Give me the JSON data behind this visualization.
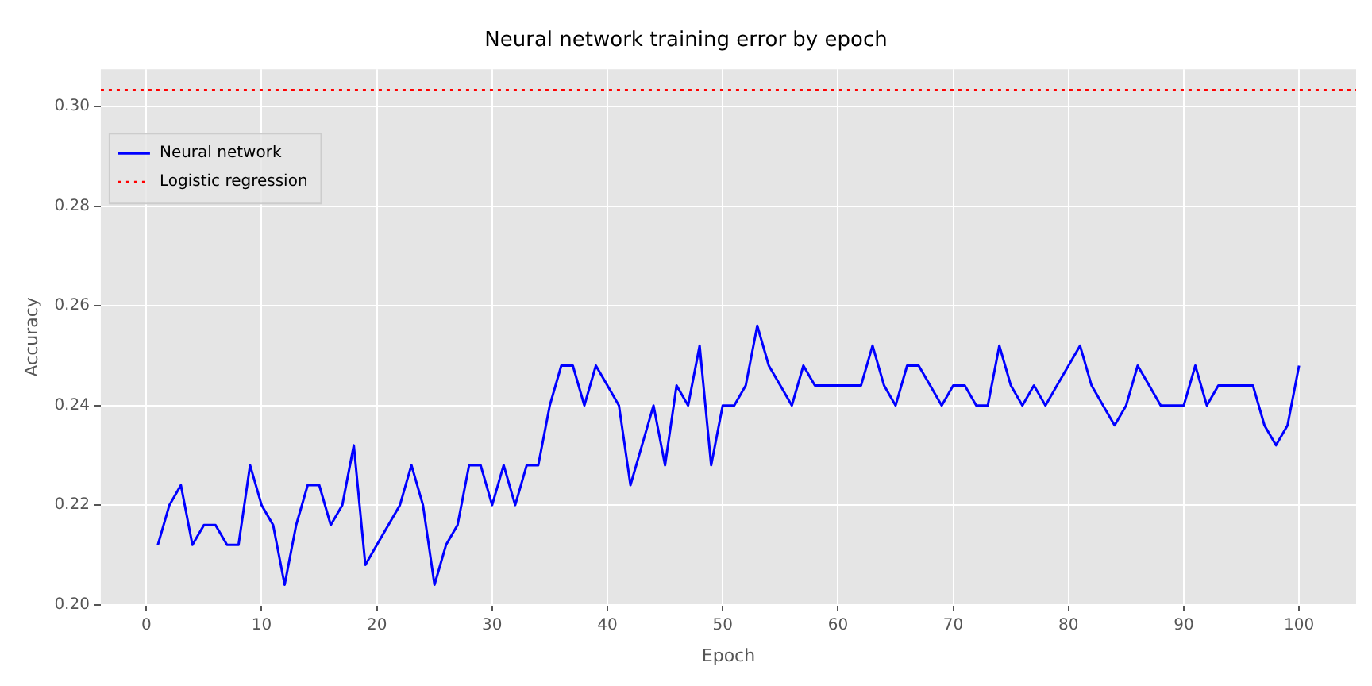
{
  "chart_data": {
    "type": "line",
    "title": "Neural network training error by epoch",
    "xlabel": "Epoch",
    "ylabel": "Accuracy",
    "x": [
      1,
      2,
      3,
      4,
      5,
      6,
      7,
      8,
      9,
      10,
      11,
      12,
      13,
      14,
      15,
      16,
      17,
      18,
      19,
      20,
      21,
      22,
      23,
      24,
      25,
      26,
      27,
      28,
      29,
      30,
      31,
      32,
      33,
      34,
      35,
      36,
      37,
      38,
      39,
      40,
      41,
      42,
      43,
      44,
      45,
      46,
      47,
      48,
      49,
      50,
      51,
      52,
      53,
      54,
      55,
      56,
      57,
      58,
      59,
      60,
      61,
      62,
      63,
      64,
      65,
      66,
      67,
      68,
      69,
      70,
      71,
      72,
      73,
      74,
      75,
      76,
      77,
      78,
      79,
      80,
      81,
      82,
      83,
      84,
      85,
      86,
      87,
      88,
      89,
      90,
      91,
      92,
      93,
      94,
      95,
      96,
      97,
      98,
      99,
      100
    ],
    "series": [
      {
        "name": "Neural network",
        "color": "#0000ff",
        "line_style": "solid",
        "values": [
          0.212,
          0.22,
          0.224,
          0.212,
          0.216,
          0.216,
          0.212,
          0.212,
          0.228,
          0.22,
          0.216,
          0.204,
          0.216,
          0.224,
          0.224,
          0.216,
          0.22,
          0.232,
          0.208,
          0.212,
          0.216,
          0.22,
          0.228,
          0.22,
          0.204,
          0.212,
          0.216,
          0.228,
          0.228,
          0.22,
          0.228,
          0.22,
          0.228,
          0.228,
          0.24,
          0.248,
          0.248,
          0.24,
          0.248,
          0.244,
          0.24,
          0.224,
          0.232,
          0.24,
          0.228,
          0.244,
          0.24,
          0.252,
          0.228,
          0.24,
          0.24,
          0.244,
          0.256,
          0.248,
          0.244,
          0.24,
          0.248,
          0.244,
          0.244,
          0.244,
          0.244,
          0.244,
          0.252,
          0.244,
          0.24,
          0.248,
          0.248,
          0.244,
          0.24,
          0.244,
          0.244,
          0.24,
          0.24,
          0.252,
          0.244,
          0.24,
          0.244,
          0.24,
          0.244,
          0.248,
          0.252,
          0.244,
          0.24,
          0.236,
          0.24,
          0.248,
          0.244,
          0.24,
          0.24,
          0.24,
          0.248,
          0.24,
          0.244,
          0.244,
          0.244,
          0.244,
          0.236,
          0.232,
          0.236,
          0.248
        ]
      },
      {
        "name": "Logistic regression",
        "color": "#ff0000",
        "line_style": "dotted",
        "x": [
          -3.95,
          104.95
        ],
        "values": [
          0.3033,
          0.3033
        ]
      }
    ],
    "xlim": [
      -3.95,
      104.95
    ],
    "xticks": [
      0,
      10,
      20,
      30,
      40,
      50,
      60,
      70,
      80,
      90,
      100
    ],
    "ylim": [
      0.2,
      0.3075
    ],
    "yticks": [
      {
        "value": 0.2,
        "label": "0.20"
      },
      {
        "value": 0.22,
        "label": "0.22"
      },
      {
        "value": 0.24,
        "label": "0.24"
      },
      {
        "value": 0.26,
        "label": "0.26"
      },
      {
        "value": 0.28,
        "label": "0.28"
      },
      {
        "value": 0.3,
        "label": "0.30"
      }
    ],
    "grid": true,
    "legend": "top left",
    "marker": "none"
  }
}
